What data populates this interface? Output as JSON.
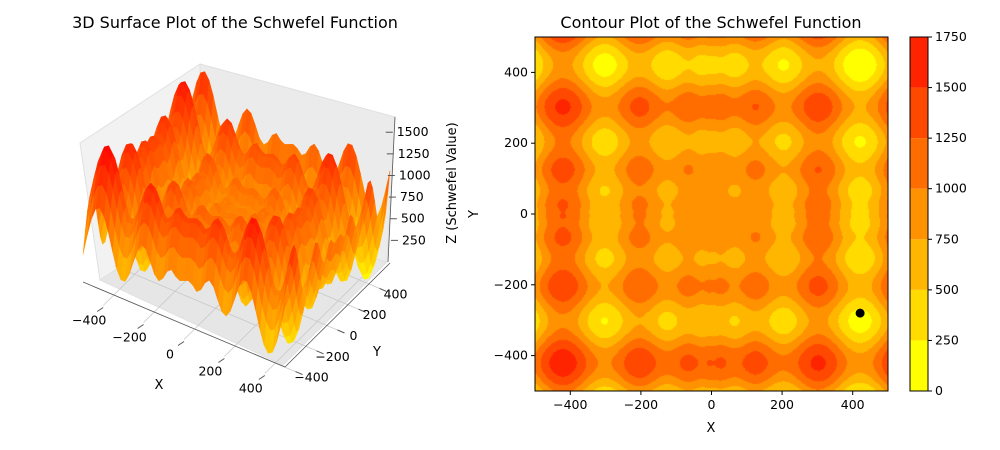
{
  "chart_data": [
    {
      "type": "surface",
      "title": "3D Surface Plot of the Schwefel Function",
      "xlabel": "X",
      "ylabel": "Y",
      "zlabel": "Z (Schwefel Value)",
      "function": "schwefel",
      "domain": [
        -500,
        500
      ],
      "colormap": "autumn_r",
      "x_ticks": [
        "−400",
        "−200",
        "0",
        "200",
        "400"
      ],
      "y_ticks": [
        "−400",
        "−200",
        "0",
        "200",
        "400"
      ],
      "z_ticks": [
        "250",
        "500",
        "750",
        "1000",
        "1250",
        "1500"
      ]
    },
    {
      "type": "contour",
      "title": "Contour Plot of the Schwefel Function",
      "xlabel": "X",
      "ylabel": "Y",
      "function": "schwefel",
      "xlim": [
        -500,
        500
      ],
      "ylim": [
        -500,
        500
      ],
      "colormap": "autumn_r",
      "levels": [
        0,
        250,
        500,
        750,
        1000,
        1250,
        1500,
        1750
      ],
      "level_colors": [
        "#ffff00",
        "#ffdb00",
        "#ffb600",
        "#ff9200",
        "#ff6d00",
        "#ff4900",
        "#ff2400"
      ],
      "x_ticks": [
        "−400",
        "−200",
        "0",
        "200",
        "400"
      ],
      "y_ticks": [
        "−400",
        "−200",
        "0",
        "200",
        "400"
      ],
      "colorbar_ticks": [
        "0",
        "250",
        "500",
        "750",
        "1000",
        "1250",
        "1500",
        "1750"
      ],
      "marker": {
        "x": 420.97,
        "y": -280,
        "color": "#000000"
      }
    }
  ]
}
